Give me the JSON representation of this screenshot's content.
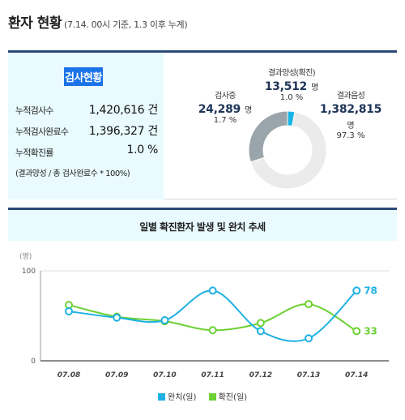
{
  "header": {
    "title": "환자 현황",
    "subtitle": "(7.14. 00시 기준, 1.3 이후 누계)"
  },
  "test_status": {
    "title": "검사현황",
    "rows": [
      {
        "label": "누적검사수",
        "value": "1,420,616 건"
      },
      {
        "label": "누적검사완료수",
        "value": "1,396,327 건"
      },
      {
        "label": "누적확진률",
        "value": "1.0 %"
      }
    ],
    "note": "(결과양성 / 총 검사완료수 * 100%)"
  },
  "donut": {
    "testing": {
      "label": "검사중",
      "value": "24,289",
      "unit": "명",
      "pct": "1.7 %",
      "fraction": 0.017
    },
    "positive": {
      "label": "결과양성(확진)",
      "value": "13,512",
      "unit": "명",
      "pct": "1.0 %",
      "fraction": 0.01
    },
    "negative": {
      "label": "결과음성",
      "value": "1,382,815",
      "unit": "명",
      "pct": "97.3 %",
      "fraction": 0.973
    },
    "colors": {
      "testing": "#9aa5ab",
      "positive": "#19b4e6",
      "negative": "#ebebeb"
    }
  },
  "trend": {
    "title": "일별 확진환자 발생 및 완치 추세",
    "unit_label": "(명)",
    "legend": [
      {
        "label": "완치(일)",
        "color": "#1fb1e2"
      },
      {
        "label": "확진(일)",
        "color": "#6cd133"
      }
    ]
  },
  "chart_data": {
    "type": "line",
    "title": "일별 확진환자 발생 및 완치 추세",
    "ylabel": "(명)",
    "ylim": [
      0,
      100
    ],
    "yticks": [
      "100",
      "0"
    ],
    "categories": [
      "07.08",
      "07.09",
      "07.10",
      "07.11",
      "07.12",
      "07.13",
      "07.14"
    ],
    "series": [
      {
        "name": "완치(일)",
        "color": "#1fb1e2",
        "values": [
          55,
          48,
          45,
          78,
          33,
          25,
          78
        ],
        "end_label": "78"
      },
      {
        "name": "확진(일)",
        "color": "#6cd133",
        "values": [
          62,
          49,
          44,
          34,
          42,
          63,
          33
        ],
        "end_label": "33"
      }
    ]
  }
}
